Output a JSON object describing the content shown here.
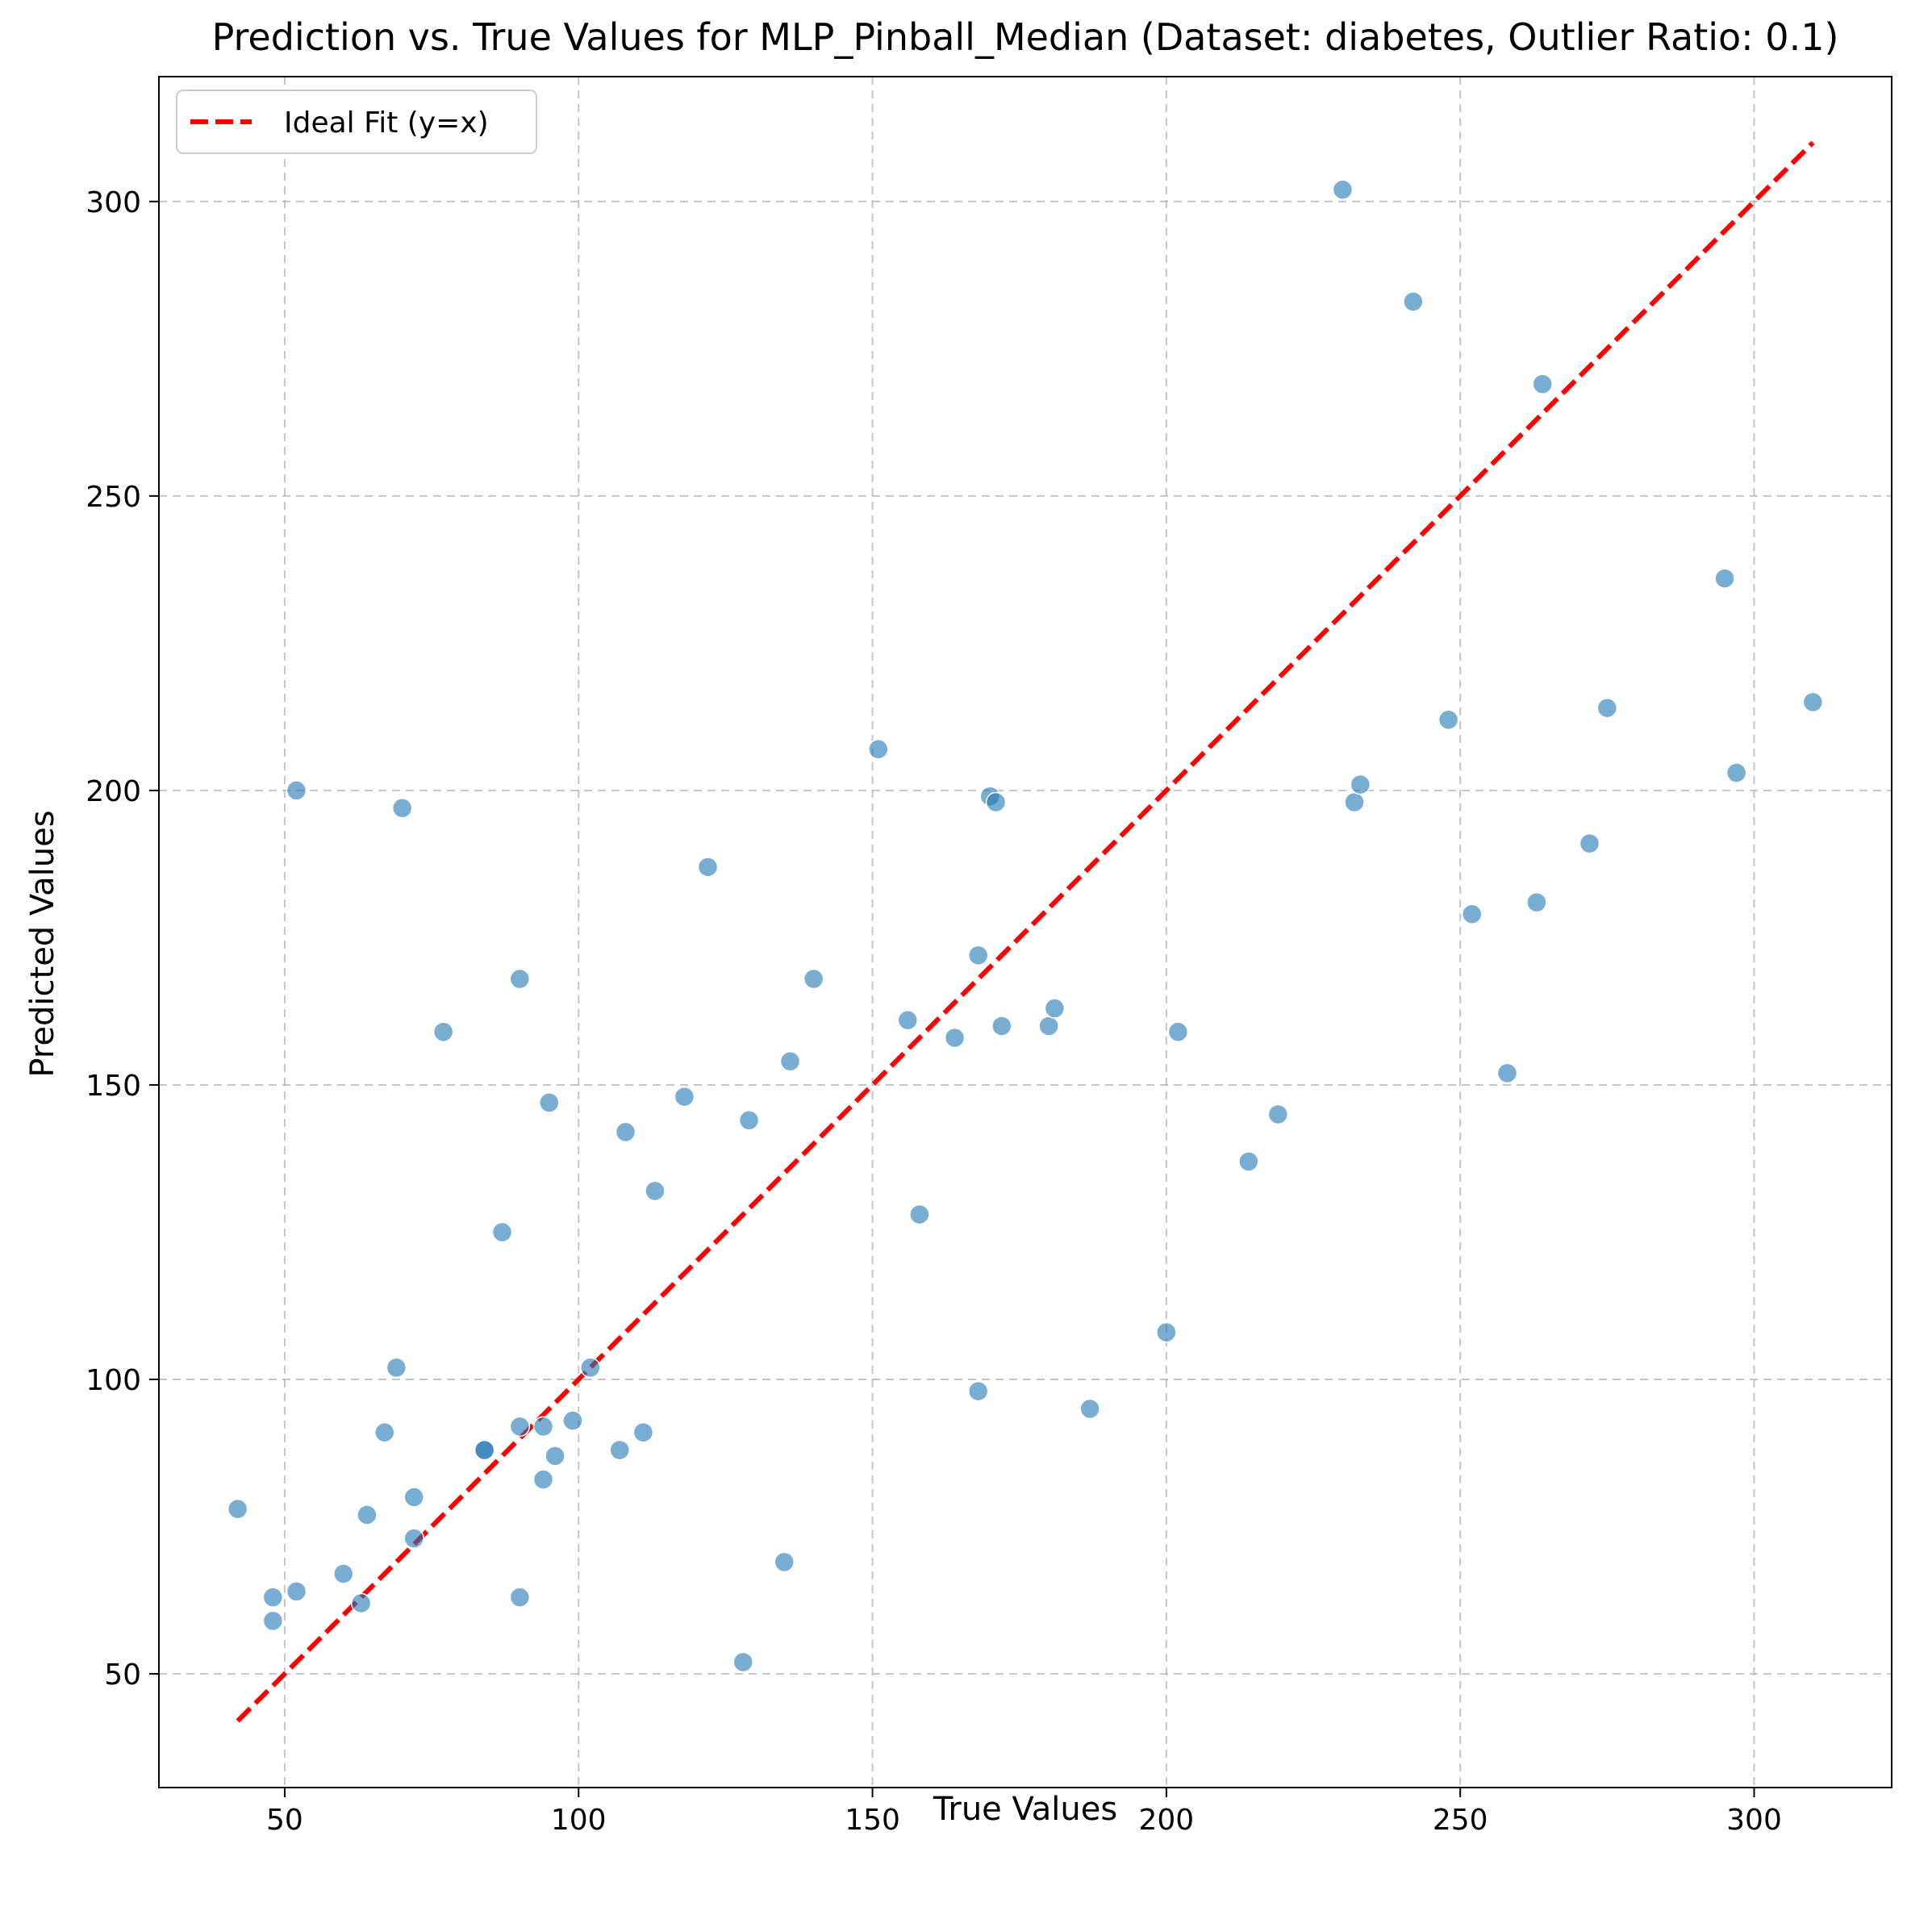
{
  "chart_data": {
    "type": "scatter",
    "title": "Prediction vs. True Values for MLP_Pinball_Median (Dataset: diabetes, Outlier Ratio: 0.1)",
    "xlabel": "True Values",
    "ylabel": "Predicted Values",
    "xlim": [
      28.6,
      323.4
    ],
    "ylim": [
      30.7,
      321.2
    ],
    "xticks": [
      50,
      100,
      150,
      200,
      250,
      300
    ],
    "yticks": [
      50,
      100,
      150,
      200,
      250,
      300
    ],
    "grid": true,
    "legend_position": "top-left",
    "colors": {
      "points": "#1f77b4",
      "ideal_line": "#ff0000",
      "grid": "#b0b0b0"
    },
    "series": [
      {
        "type": "scatter",
        "points": [
          [
            42,
            78
          ],
          [
            48,
            63
          ],
          [
            48,
            59
          ],
          [
            52,
            64
          ],
          [
            52,
            200
          ],
          [
            60,
            67
          ],
          [
            63,
            62
          ],
          [
            64,
            77
          ],
          [
            67,
            91
          ],
          [
            69,
            102
          ],
          [
            70,
            197
          ],
          [
            72,
            80
          ],
          [
            72,
            73
          ],
          [
            77,
            159
          ],
          [
            84,
            88
          ],
          [
            84,
            88
          ],
          [
            87,
            125
          ],
          [
            90,
            168
          ],
          [
            90,
            92
          ],
          [
            90,
            63
          ],
          [
            94,
            92
          ],
          [
            94,
            83
          ],
          [
            95,
            147
          ],
          [
            96,
            87
          ],
          [
            99,
            93
          ],
          [
            102,
            102
          ],
          [
            107,
            88
          ],
          [
            108,
            142
          ],
          [
            111,
            91
          ],
          [
            113,
            132
          ],
          [
            118,
            148
          ],
          [
            122,
            187
          ],
          [
            128,
            52
          ],
          [
            129,
            144
          ],
          [
            135,
            69
          ],
          [
            136,
            154
          ],
          [
            140,
            168
          ],
          [
            151,
            207
          ],
          [
            156,
            161
          ],
          [
            158,
            128
          ],
          [
            164,
            158
          ],
          [
            168,
            172
          ],
          [
            168,
            98
          ],
          [
            170,
            199
          ],
          [
            171,
            198
          ],
          [
            172,
            160
          ],
          [
            180,
            160
          ],
          [
            181,
            163
          ],
          [
            187,
            95
          ],
          [
            200,
            108
          ],
          [
            202,
            159
          ],
          [
            214,
            137
          ],
          [
            219,
            145
          ],
          [
            230,
            302
          ],
          [
            232,
            198
          ],
          [
            233,
            201
          ],
          [
            242,
            283
          ],
          [
            248,
            212
          ],
          [
            252,
            179
          ],
          [
            258,
            152
          ],
          [
            263,
            181
          ],
          [
            264,
            269
          ],
          [
            272,
            191
          ],
          [
            275,
            214
          ],
          [
            295,
            236
          ],
          [
            297,
            203
          ],
          [
            310,
            215
          ]
        ]
      },
      {
        "type": "line",
        "name": "Ideal Fit (y=x)",
        "x": [
          42,
          310
        ],
        "y": [
          42,
          310
        ]
      }
    ]
  }
}
